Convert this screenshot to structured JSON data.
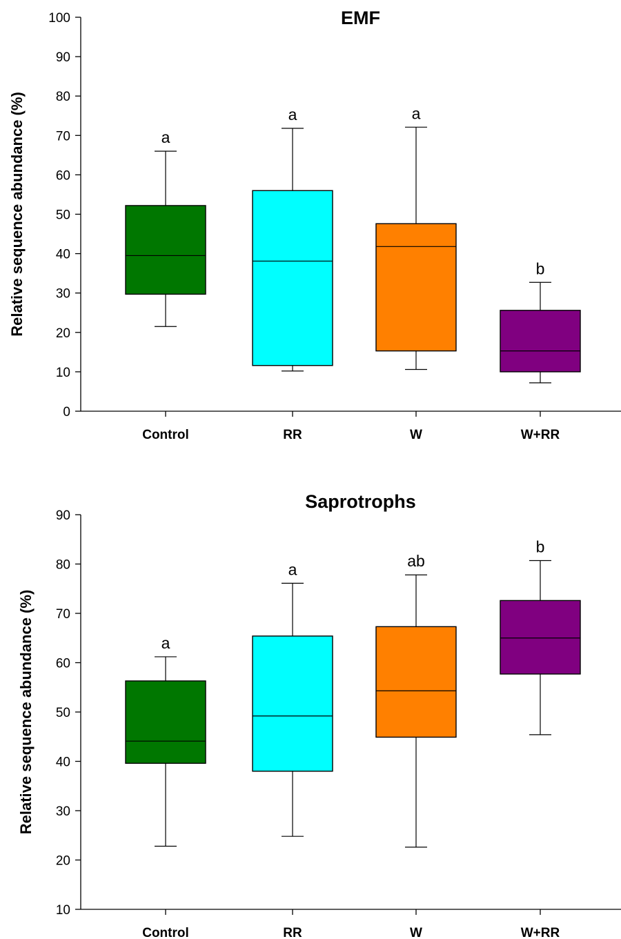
{
  "chart_data": [
    {
      "type": "box",
      "title": "EMF",
      "xlabel": "",
      "ylabel": "Relative sequence abundance (%)",
      "ylim": [
        0,
        100
      ],
      "yticks": [
        0,
        10,
        20,
        30,
        40,
        50,
        60,
        70,
        80,
        90,
        100
      ],
      "categories": [
        "Control",
        "RR",
        "W",
        "W+RR"
      ],
      "boxes": [
        {
          "whisker_low": 21.5,
          "q1": 29.7,
          "median": 39.5,
          "q3": 52.2,
          "whisker_high": 66.0,
          "significance": "a",
          "color": "#007700"
        },
        {
          "whisker_low": 10.2,
          "q1": 11.6,
          "median": 38.1,
          "q3": 56.0,
          "whisker_high": 71.8,
          "significance": "a",
          "color": "#00FFFF"
        },
        {
          "whisker_low": 10.6,
          "q1": 15.3,
          "median": 41.8,
          "q3": 47.6,
          "whisker_high": 72.1,
          "significance": "a",
          "color": "#FF8000"
        },
        {
          "whisker_low": 7.2,
          "q1": 10.0,
          "median": 15.3,
          "q3": 25.6,
          "whisker_high": 32.7,
          "significance": "b",
          "color": "#800080"
        }
      ]
    },
    {
      "type": "box",
      "title": "Saprotrophs",
      "xlabel": "",
      "ylabel": "Relative sequence abundance (%)",
      "ylim": [
        10,
        90
      ],
      "yticks": [
        10,
        20,
        30,
        40,
        50,
        60,
        70,
        80,
        90
      ],
      "categories": [
        "Control",
        "RR",
        "W",
        "W+RR"
      ],
      "boxes": [
        {
          "whisker_low": 22.8,
          "q1": 39.6,
          "median": 44.1,
          "q3": 56.3,
          "whisker_high": 61.2,
          "significance": "a",
          "color": "#007700"
        },
        {
          "whisker_low": 24.8,
          "q1": 38.0,
          "median": 49.2,
          "q3": 65.4,
          "whisker_high": 76.1,
          "significance": "a",
          "color": "#00FFFF"
        },
        {
          "whisker_low": 22.6,
          "q1": 44.9,
          "median": 54.3,
          "q3": 67.3,
          "whisker_high": 77.8,
          "significance": "ab",
          "color": "#FF8000"
        },
        {
          "whisker_low": 45.4,
          "q1": 57.7,
          "median": 65.0,
          "q3": 72.6,
          "whisker_high": 80.7,
          "significance": "b",
          "color": "#800080"
        }
      ]
    }
  ]
}
